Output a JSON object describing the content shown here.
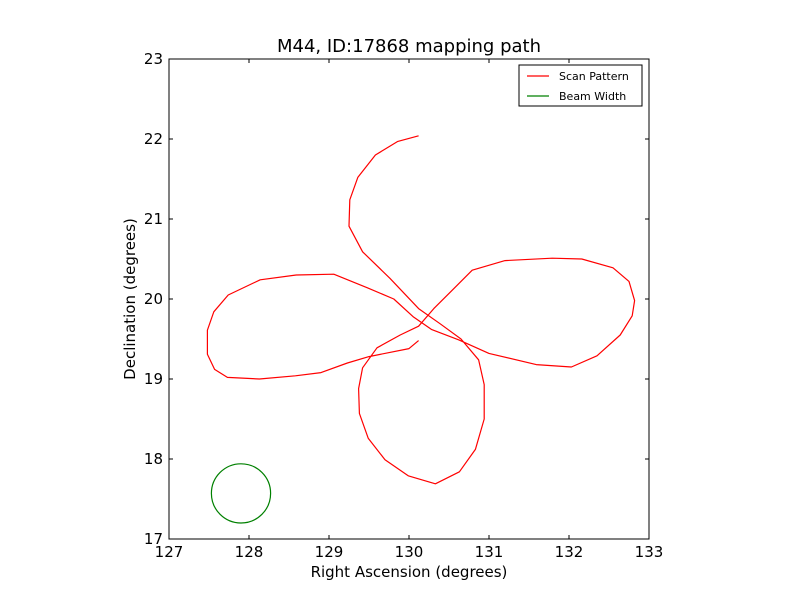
{
  "chart_data": {
    "type": "line",
    "title": "M44, ID:17868 mapping path",
    "xlabel": "Right Ascension (degrees)",
    "ylabel": "Declination (degrees)",
    "xlim": [
      127,
      133
    ],
    "ylim": [
      17,
      23
    ],
    "xticks": [
      "127",
      "128",
      "129",
      "130",
      "131",
      "132",
      "133"
    ],
    "yticks": [
      "17",
      "18",
      "19",
      "20",
      "21",
      "22",
      "23"
    ],
    "grid": false,
    "legend_position": "top-right",
    "series": [
      {
        "name": "Scan Pattern",
        "color": "#ff0000",
        "x": [
          130.12,
          130.0,
          129.5,
          129.23,
          128.9,
          128.58,
          128.13,
          127.73,
          127.57,
          127.48,
          127.48,
          127.56,
          127.74,
          128.14,
          128.59,
          129.06,
          129.48,
          129.81,
          130.05,
          130.28,
          130.62,
          131.0,
          131.59,
          132.03,
          132.35,
          132.64,
          132.79,
          132.82,
          132.75,
          132.55,
          132.16,
          131.79,
          131.2,
          130.79,
          130.55,
          130.31,
          130.12,
          129.89,
          129.6,
          129.42,
          129.37,
          129.38,
          129.49,
          129.7,
          129.99,
          130.33,
          130.63,
          130.83,
          130.94,
          130.94,
          130.87,
          130.65,
          130.39,
          130.12,
          129.76,
          129.42,
          129.25,
          129.26,
          129.36,
          129.58,
          129.86,
          130.12
        ],
        "y": [
          19.48,
          19.38,
          19.28,
          19.2,
          19.08,
          19.04,
          19.0,
          19.02,
          19.12,
          19.31,
          19.61,
          19.84,
          20.05,
          20.24,
          20.3,
          20.31,
          20.14,
          20.0,
          19.78,
          19.62,
          19.49,
          19.32,
          19.18,
          19.15,
          19.29,
          19.55,
          19.79,
          19.98,
          20.22,
          20.39,
          20.5,
          20.51,
          20.48,
          20.36,
          20.12,
          19.88,
          19.66,
          19.55,
          19.39,
          19.14,
          18.88,
          18.57,
          18.26,
          17.99,
          17.79,
          17.69,
          17.84,
          18.12,
          18.5,
          18.93,
          19.24,
          19.5,
          19.69,
          19.88,
          20.26,
          20.59,
          20.91,
          21.24,
          21.52,
          21.8,
          21.97,
          22.04
        ]
      },
      {
        "name": "Beam Width",
        "color": "#008000",
        "center": [
          127.9,
          17.57
        ],
        "radius_deg": 0.37
      }
    ]
  }
}
